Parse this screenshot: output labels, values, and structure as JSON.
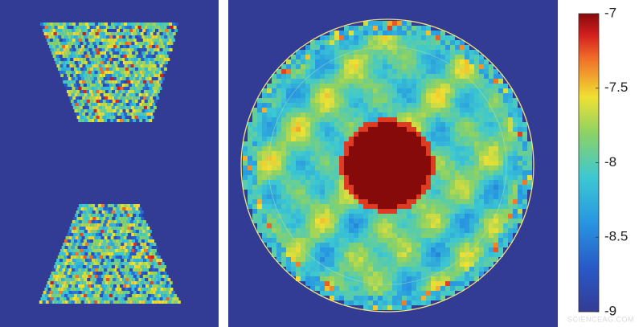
{
  "chart_data": {
    "type": "heatmap",
    "colormap": "jet",
    "zlim": [
      -9,
      -7
    ],
    "zticks": [
      -9,
      -8.5,
      -8,
      -7.5,
      -7
    ]
  },
  "watermark": "SCIENCEAG.COM"
}
